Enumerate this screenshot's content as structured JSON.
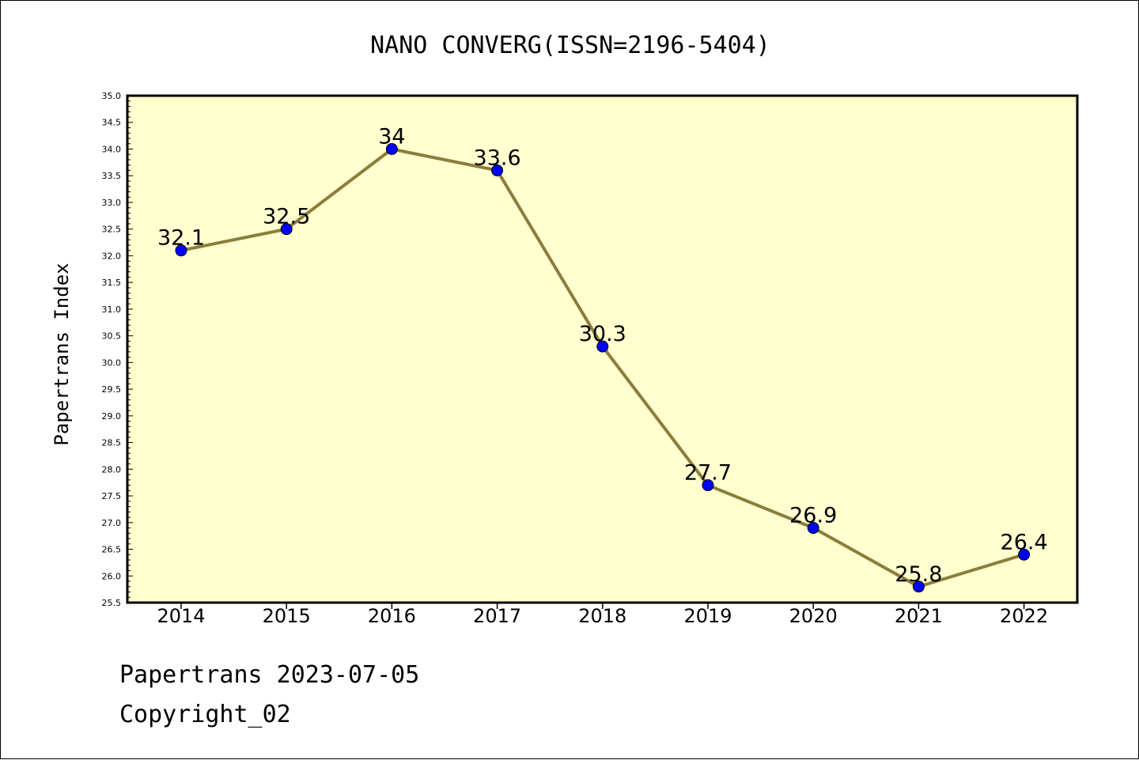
{
  "chart_data": {
    "type": "line",
    "title": "NANO CONVERG(ISSN=2196-5404)",
    "ylabel": "Papertrans Index",
    "xlabel": "",
    "categories": [
      "2014",
      "2015",
      "2016",
      "2017",
      "2018",
      "2019",
      "2020",
      "2021",
      "2022"
    ],
    "series": [
      {
        "values": [
          32.1,
          32.5,
          34.0,
          33.6,
          30.3,
          27.7,
          26.9,
          25.8,
          26.4
        ]
      }
    ],
    "data_labels": [
      "32.1",
      "32.5",
      "34",
      "33.6",
      "30.3",
      "27.7",
      "26.9",
      "25.8",
      "26.4"
    ],
    "ylim": [
      25.5,
      35.0
    ],
    "ytick_step": 0.5,
    "ytick_labels": [
      "25.5",
      "26.0",
      "26.5",
      "27.0",
      "27.5",
      "28.0",
      "28.5",
      "29.0",
      "29.5",
      "30.0",
      "30.5",
      "31.0",
      "31.5",
      "32.0",
      "32.5",
      "33.0",
      "33.5",
      "34.0",
      "34.5",
      "35.0"
    ],
    "grid": false,
    "colors": {
      "plot_background": "#ffffd0",
      "line": "#8b7d3a",
      "marker": "#0000ff",
      "marker_edge": "#000000"
    }
  },
  "footer": {
    "date_line": "Papertrans 2023-07-05",
    "copyright": "Copyright_02"
  }
}
